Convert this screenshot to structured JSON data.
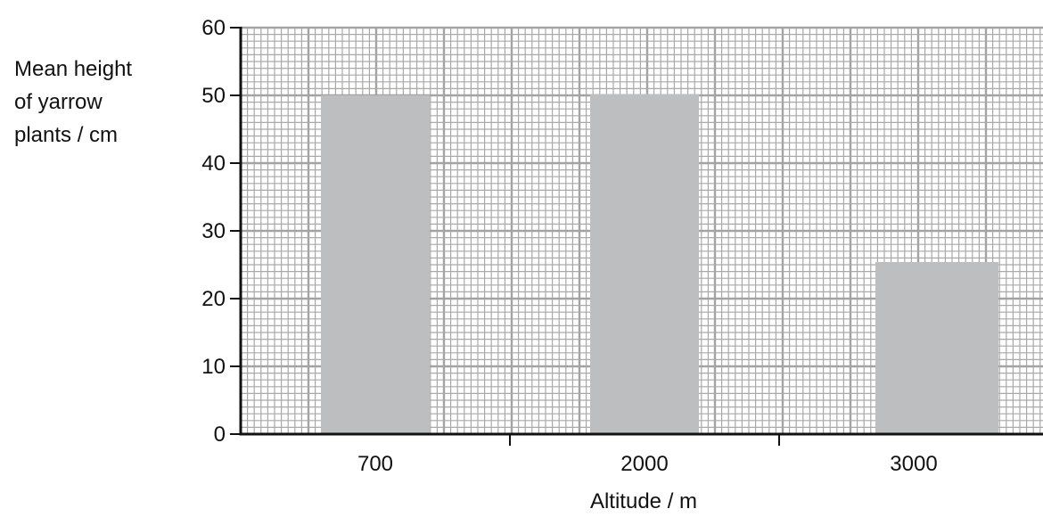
{
  "chart_data": {
    "type": "bar",
    "title": "",
    "xlabel": "Altitude / m",
    "ylabel_lines": [
      "Mean height",
      "of yarrow",
      "plants / cm"
    ],
    "categories": [
      "700",
      "2000",
      "3000"
    ],
    "values": [
      50,
      50.2,
      25.4
    ],
    "ylim": [
      0,
      60
    ],
    "yticks": [
      0,
      10,
      20,
      30,
      40,
      50,
      60
    ],
    "grid": true,
    "legend": "none",
    "colors": {
      "bar": "#bcbec0",
      "grid_minor": "#a9a9a9",
      "grid_major": "#a3a3a3",
      "axis": "#111111"
    }
  }
}
